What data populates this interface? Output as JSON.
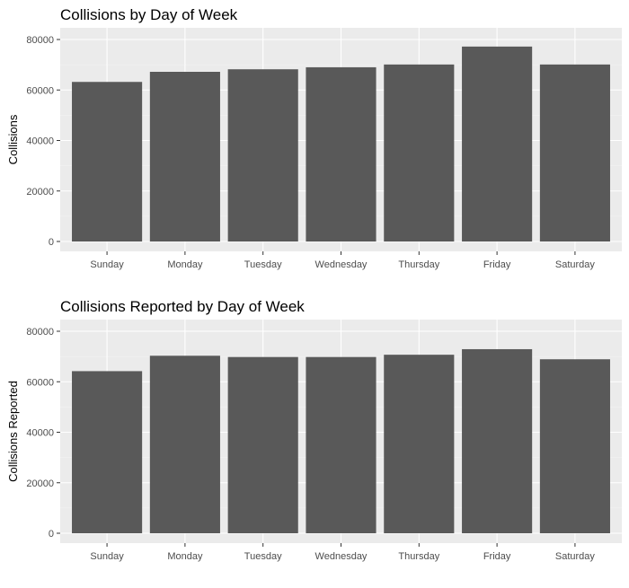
{
  "colors": {
    "panel_background": "#ebebeb",
    "grid_major": "#ffffff",
    "grid_minor": "#f5f5f5",
    "bar_fill": "#595959",
    "tick_text": "#4d4d4d",
    "title_text": "#000000"
  },
  "chart_data": [
    {
      "type": "bar",
      "title": "Collisions by Day of Week",
      "xlabel": "",
      "ylabel": "Collisions",
      "categories": [
        "Sunday",
        "Monday",
        "Tuesday",
        "Wednesday",
        "Thursday",
        "Friday",
        "Saturday"
      ],
      "values": [
        63200,
        67200,
        68200,
        69000,
        70100,
        77200,
        70100
      ],
      "ylim": [
        0,
        80000
      ],
      "yticks": [
        0,
        20000,
        40000,
        60000,
        80000
      ],
      "ytick_labels": [
        "0",
        "20000",
        "40000",
        "60000",
        "80000"
      ],
      "grid": true,
      "legend": "none"
    },
    {
      "type": "bar",
      "title": "Collisions Reported by Day of Week",
      "xlabel": "",
      "ylabel": "Collisions Reported",
      "categories": [
        "Sunday",
        "Monday",
        "Tuesday",
        "Wednesday",
        "Thursday",
        "Friday",
        "Saturday"
      ],
      "values": [
        64200,
        70300,
        69800,
        69800,
        70700,
        72900,
        68900
      ],
      "ylim": [
        0,
        80000
      ],
      "yticks": [
        0,
        20000,
        40000,
        60000,
        80000
      ],
      "ytick_labels": [
        "0",
        "20000",
        "40000",
        "60000",
        "80000"
      ],
      "grid": true,
      "legend": "none"
    }
  ]
}
